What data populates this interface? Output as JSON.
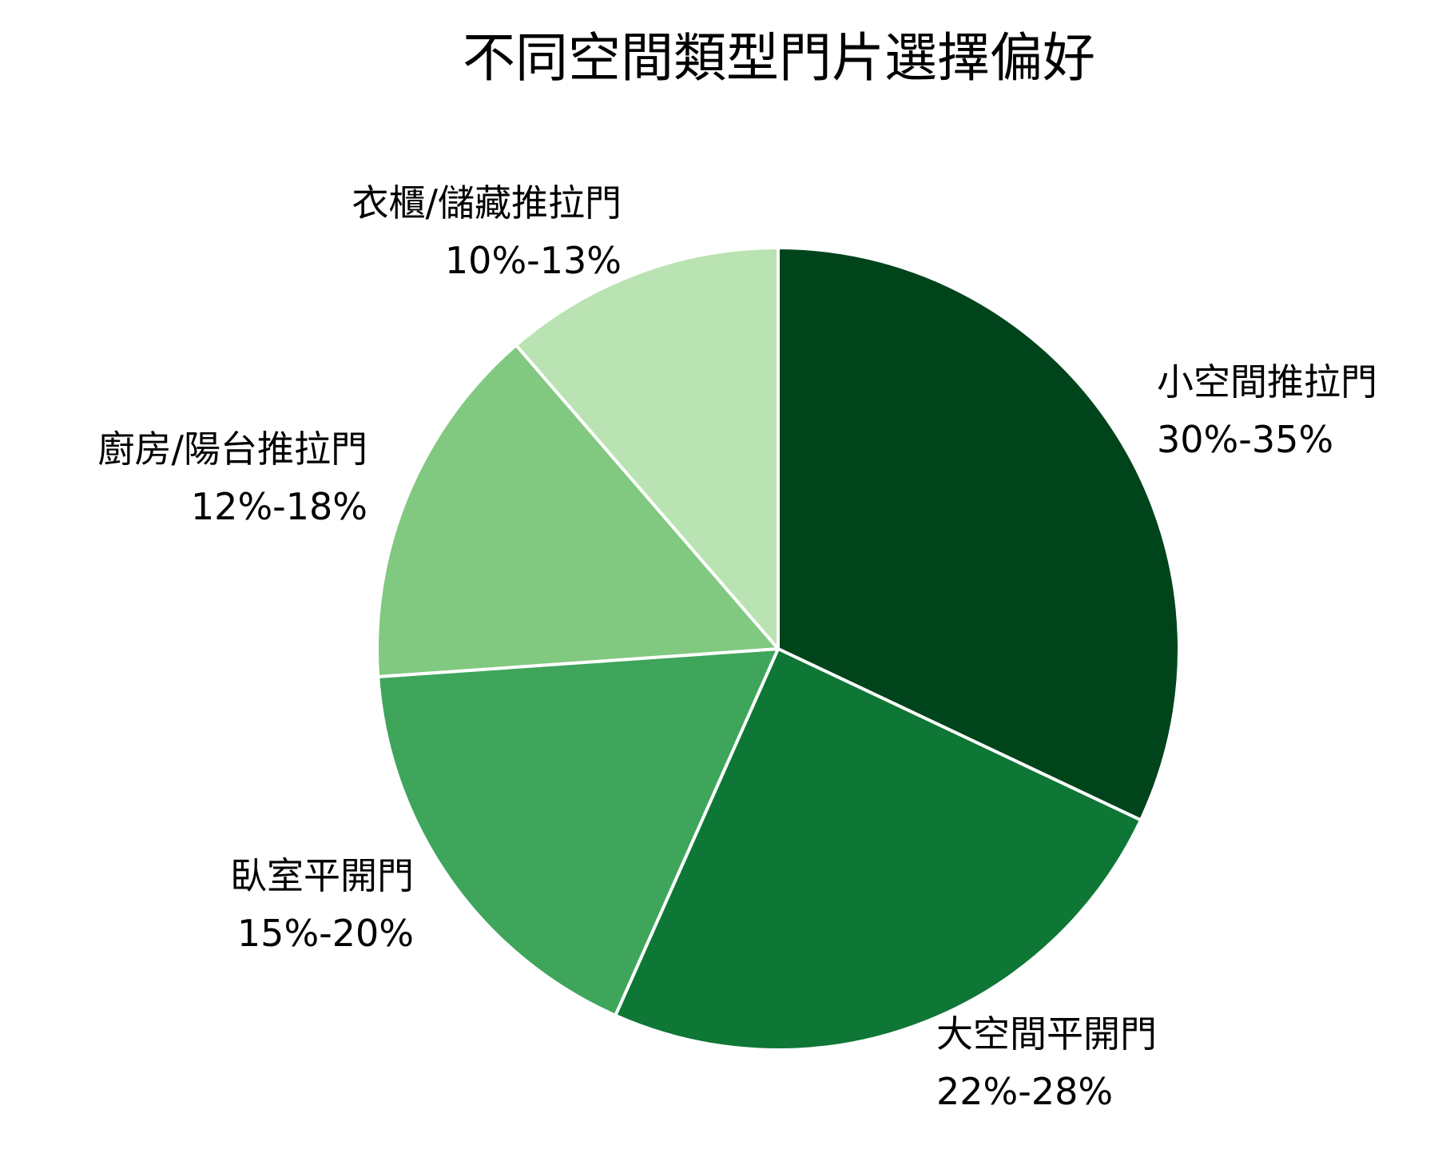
{
  "chart_data": {
    "type": "pie",
    "title": "不同空間類型門片選擇偏好",
    "start_angle": "12 o'clock",
    "direction": "clockwise",
    "slices": [
      {
        "label": "小空間推拉門",
        "range_label": "30%-35%",
        "value": 32.5,
        "color": "#00441b"
      },
      {
        "label": "大空間平開門",
        "range_label": "22%-28%",
        "value": 25,
        "color": "#0e7735"
      },
      {
        "label": "臥室平開門",
        "range_label": "15%-20%",
        "value": 17.5,
        "color": "#3ea55b"
      },
      {
        "label": "廚房/陽台推拉門",
        "range_label": "12%-18%",
        "value": 15,
        "color": "#81c880"
      },
      {
        "label": "衣櫃/儲藏推拉門",
        "range_label": "10%-13%",
        "value": 11.5,
        "color": "#b9e3b2"
      }
    ],
    "edge_color": "#ffffff"
  }
}
